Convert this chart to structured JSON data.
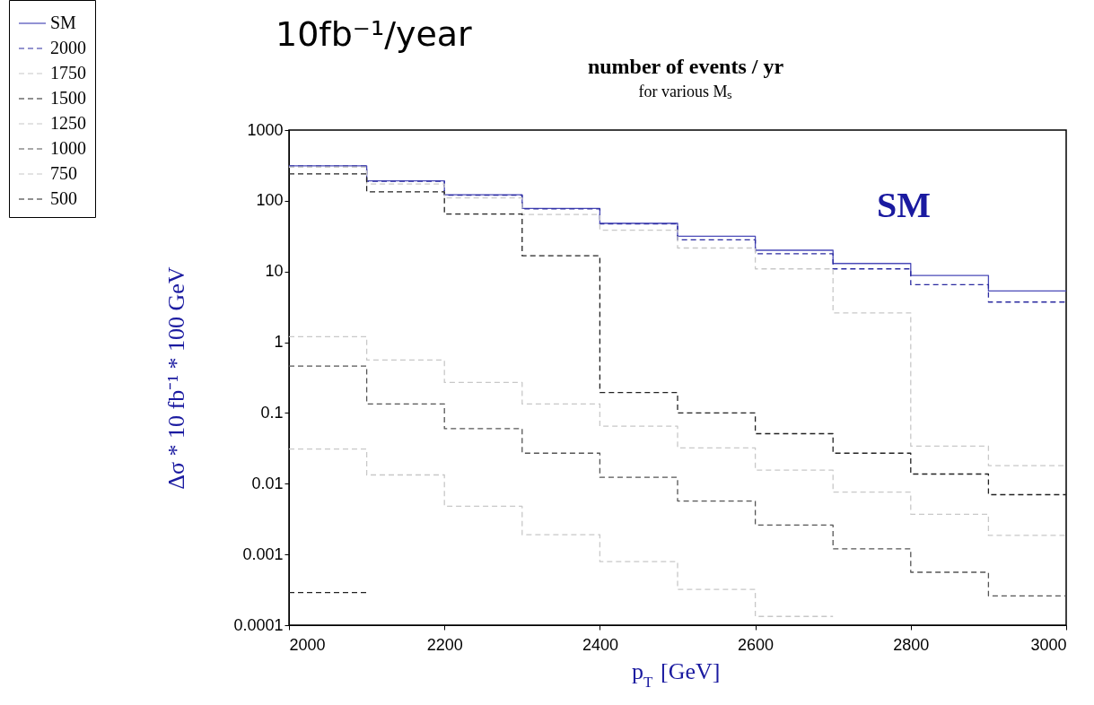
{
  "chart_data": {
    "type": "step",
    "title": "number of events / yr",
    "subtitle": "for various Mₛ",
    "xlabel": "p$_{T}$ [GeV]",
    "ylabel": "Δσ * 10 fb⁻¹ * 100 GeV",
    "annotations": [
      "10fb⁻¹/year",
      "SM"
    ],
    "x": [
      2000,
      2100,
      2200,
      2300,
      2400,
      2500,
      2600,
      2700,
      2800,
      2900,
      3000
    ],
    "xlim": [
      2000,
      3000
    ],
    "xticks": [
      2000,
      2200,
      2400,
      2600,
      2800,
      3000
    ],
    "ylim": [
      0.0001,
      1000
    ],
    "yticks": [
      0.0001,
      0.001,
      0.01,
      0.1,
      1,
      10,
      100,
      1000
    ],
    "log": "y",
    "grid": false,
    "legend": "top left",
    "series": [
      {
        "name": "SM",
        "color": "#4a4ab8",
        "line_style": "solid",
        "values": [
          312,
          191,
          122,
          78,
          48,
          31.5,
          20,
          13,
          8.8,
          5.3,
          5.3
        ]
      },
      {
        "name": "2000",
        "color": "#2a2aa0",
        "line_style": "dashed",
        "values": [
          310,
          189,
          120,
          77,
          47,
          28,
          17.8,
          10.9,
          6.5,
          3.7,
          3.7
        ]
      },
      {
        "name": "1750",
        "color": "#c8c8c8",
        "line_style": "dashed",
        "values": [
          300,
          173,
          110,
          64,
          38.5,
          21.5,
          10.9,
          2.6,
          0.034,
          0.018,
          0.018
        ]
      },
      {
        "name": "1500",
        "color": "#222222",
        "line_style": "dashed",
        "values": [
          240,
          134,
          65,
          16.7,
          0.195,
          0.1,
          0.051,
          0.027,
          0.0137,
          0.007,
          0.007
        ]
      },
      {
        "name": "1250",
        "color": "#c8c8c8",
        "line_style": "dashed",
        "values": [
          1.2,
          0.56,
          0.27,
          0.134,
          0.065,
          0.032,
          0.0156,
          0.0076,
          0.0037,
          0.00186,
          0.00186
        ]
      },
      {
        "name": "1000",
        "color": "#555555",
        "line_style": "dashed",
        "values": [
          0.46,
          0.134,
          0.06,
          0.027,
          0.0123,
          0.0057,
          0.0026,
          0.0012,
          0.00056,
          0.00026,
          0.00026
        ]
      },
      {
        "name": "750",
        "color": "#c8c8c8",
        "line_style": "dashed",
        "x": [
          2000,
          2100,
          2200,
          2300,
          2400,
          2500,
          2600,
          2700
        ],
        "values": [
          0.031,
          0.0133,
          0.0048,
          0.0019,
          0.00079,
          0.00032,
          0.000133,
          0.000133
        ]
      },
      {
        "name": "500",
        "color": "#222222",
        "line_style": "dashed",
        "x": [
          2000,
          2100
        ],
        "values": [
          0.00029,
          0.00029
        ]
      }
    ]
  }
}
